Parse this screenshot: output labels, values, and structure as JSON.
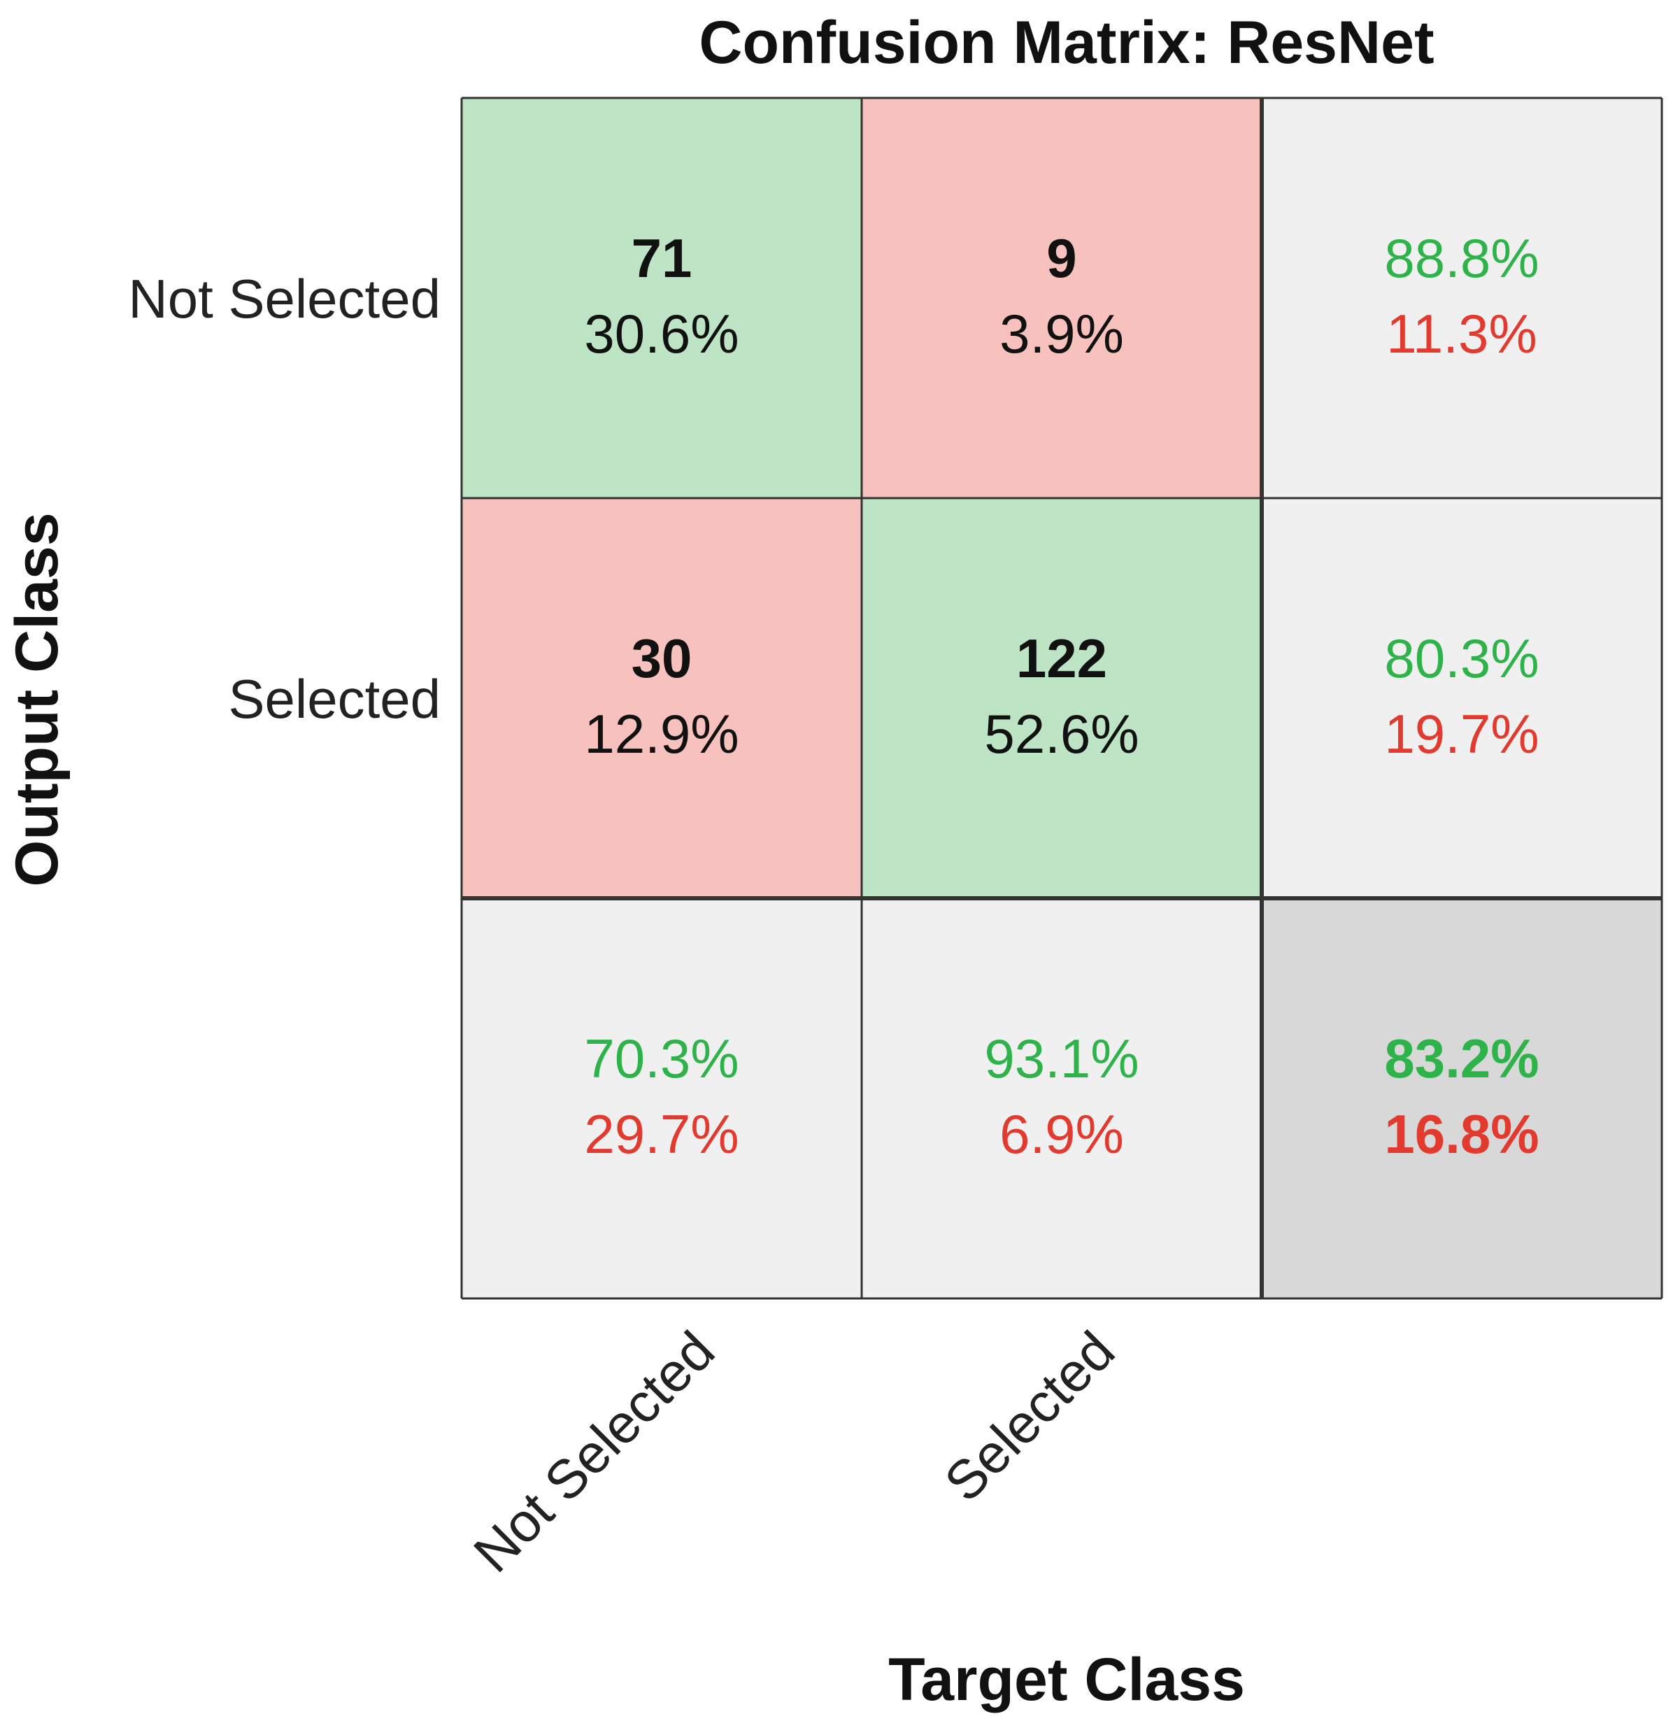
{
  "chart_data": {
    "type": "heatmap",
    "title": "Confusion Matrix: ResNet",
    "xlabel": "Target Class",
    "ylabel": "Output Class",
    "row_labels": [
      "Not Selected",
      "Selected"
    ],
    "col_labels": [
      "Not Selected",
      "Selected"
    ],
    "cells": [
      [
        {
          "count": "71",
          "percent": "30.6%",
          "kind": "correct"
        },
        {
          "count": "9",
          "percent": "3.9%",
          "kind": "error"
        }
      ],
      [
        {
          "count": "30",
          "percent": "12.9%",
          "kind": "error"
        },
        {
          "count": "122",
          "percent": "52.6%",
          "kind": "correct"
        }
      ]
    ],
    "row_summary": [
      {
        "correct": "88.8%",
        "error": "11.3%"
      },
      {
        "correct": "80.3%",
        "error": "19.7%"
      }
    ],
    "col_summary": [
      {
        "correct": "70.3%",
        "error": "29.7%"
      },
      {
        "correct": "93.1%",
        "error": "6.9%"
      }
    ],
    "overall": {
      "correct": "83.2%",
      "error": "16.8%"
    },
    "colors": {
      "correct_fill": "#bde5c5",
      "error_fill": "#f7c2be",
      "summary_fill": "#f0f0f0",
      "overall_fill": "#d8d8d8",
      "correct_text": "#2db34a",
      "error_text": "#e23a2e",
      "grid_line": "#333333"
    }
  }
}
